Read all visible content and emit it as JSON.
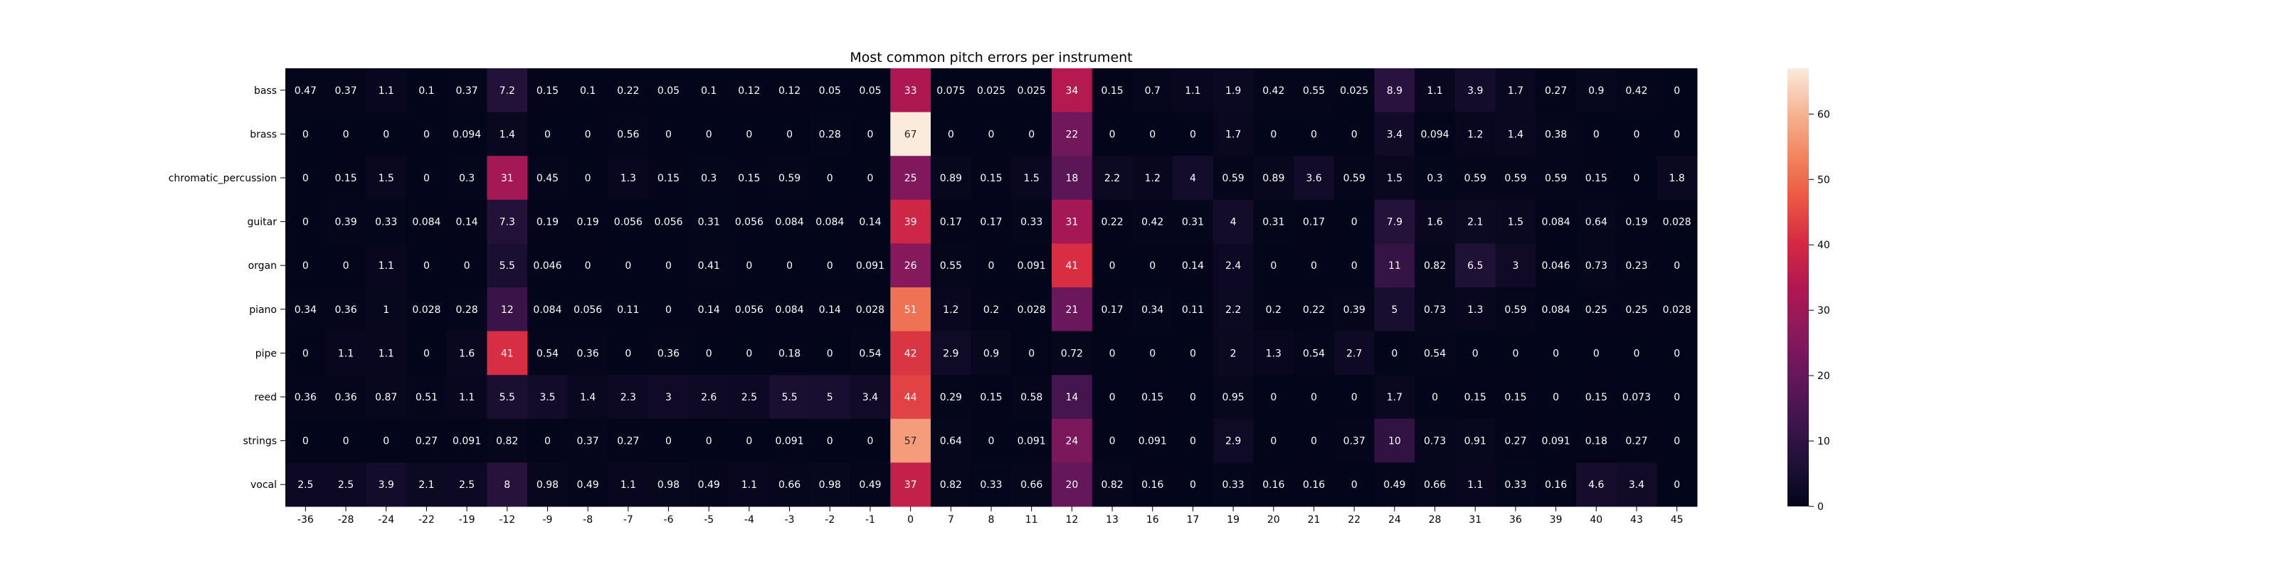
{
  "chart_data": {
    "type": "heatmap",
    "title": "Most common pitch errors per instrument",
    "xlabel": "",
    "ylabel": "",
    "x": [
      "-36",
      "-28",
      "-24",
      "-22",
      "-19",
      "-12",
      "-9",
      "-8",
      "-7",
      "-6",
      "-5",
      "-4",
      "-3",
      "-2",
      "-1",
      "0",
      "7",
      "8",
      "11",
      "12",
      "13",
      "16",
      "17",
      "19",
      "20",
      "21",
      "22",
      "24",
      "28",
      "31",
      "36",
      "39",
      "40",
      "43",
      "45"
    ],
    "y": [
      "bass",
      "brass",
      "chromatic_percussion",
      "guitar",
      "organ",
      "piano",
      "pipe",
      "reed",
      "strings",
      "vocal"
    ],
    "values": [
      [
        "0.47",
        "0.37",
        "1.1",
        "0.1",
        "0.37",
        "7.2",
        "0.15",
        "0.1",
        "0.22",
        "0.05",
        "0.1",
        "0.12",
        "0.12",
        "0.05",
        "0.05",
        "33",
        "0.075",
        "0.025",
        "0.025",
        "34",
        "0.15",
        "0.7",
        "1.1",
        "1.9",
        "0.42",
        "0.55",
        "0.025",
        "8.9",
        "1.1",
        "3.9",
        "1.7",
        "0.27",
        "0.9",
        "0.42",
        "0"
      ],
      [
        "0",
        "0",
        "0",
        "0",
        "0.094",
        "1.4",
        "0",
        "0",
        "0.56",
        "0",
        "0",
        "0",
        "0",
        "0.28",
        "0",
        "67",
        "0",
        "0",
        "0",
        "22",
        "0",
        "0",
        "0",
        "1.7",
        "0",
        "0",
        "0",
        "3.4",
        "0.094",
        "1.2",
        "1.4",
        "0.38",
        "0",
        "0",
        "0"
      ],
      [
        "0",
        "0.15",
        "1.5",
        "0",
        "0.3",
        "31",
        "0.45",
        "0",
        "1.3",
        "0.15",
        "0.3",
        "0.15",
        "0.59",
        "0",
        "0",
        "25",
        "0.89",
        "0.15",
        "1.5",
        "18",
        "2.2",
        "1.2",
        "4",
        "0.59",
        "0.89",
        "3.6",
        "0.59",
        "1.5",
        "0.3",
        "0.59",
        "0.59",
        "0.59",
        "0.15",
        "0",
        "1.8"
      ],
      [
        "0",
        "0.39",
        "0.33",
        "0.084",
        "0.14",
        "7.3",
        "0.19",
        "0.19",
        "0.056",
        "0.056",
        "0.31",
        "0.056",
        "0.084",
        "0.084",
        "0.14",
        "39",
        "0.17",
        "0.17",
        "0.33",
        "31",
        "0.22",
        "0.42",
        "0.31",
        "4",
        "0.31",
        "0.17",
        "0",
        "7.9",
        "1.6",
        "2.1",
        "1.5",
        "0.084",
        "0.64",
        "0.19",
        "0.028"
      ],
      [
        "0",
        "0",
        "1.1",
        "0",
        "0",
        "5.5",
        "0.046",
        "0",
        "0",
        "0",
        "0.41",
        "0",
        "0",
        "0",
        "0.091",
        "26",
        "0.55",
        "0",
        "0.091",
        "41",
        "0",
        "0",
        "0.14",
        "2.4",
        "0",
        "0",
        "0",
        "11",
        "0.82",
        "6.5",
        "3",
        "0.046",
        "0.73",
        "0.23",
        "0"
      ],
      [
        "0.34",
        "0.36",
        "1",
        "0.028",
        "0.28",
        "12",
        "0.084",
        "0.056",
        "0.11",
        "0",
        "0.14",
        "0.056",
        "0.084",
        "0.14",
        "0.028",
        "51",
        "1.2",
        "0.2",
        "0.028",
        "21",
        "0.17",
        "0.34",
        "0.11",
        "2.2",
        "0.2",
        "0.22",
        "0.39",
        "5",
        "0.73",
        "1.3",
        "0.59",
        "0.084",
        "0.25",
        "0.25",
        "0.028"
      ],
      [
        "0",
        "1.1",
        "1.1",
        "0",
        "1.6",
        "41",
        "0.54",
        "0.36",
        "0",
        "0.36",
        "0",
        "0",
        "0.18",
        "0",
        "0.54",
        "42",
        "2.9",
        "0.9",
        "0",
        "0.72",
        "0",
        "0",
        "0",
        "2",
        "1.3",
        "0.54",
        "2.7",
        "0",
        "0.54",
        "0",
        "0",
        "0",
        "0",
        "0",
        "0"
      ],
      [
        "0.36",
        "0.36",
        "0.87",
        "0.51",
        "1.1",
        "5.5",
        "3.5",
        "1.4",
        "2.3",
        "3",
        "2.6",
        "2.5",
        "5.5",
        "5",
        "3.4",
        "44",
        "0.29",
        "0.15",
        "0.58",
        "14",
        "0",
        "0.15",
        "0",
        "0.95",
        "0",
        "0",
        "0",
        "1.7",
        "0",
        "0.15",
        "0.15",
        "0",
        "0.15",
        "0.073",
        "0"
      ],
      [
        "0",
        "0",
        "0",
        "0.27",
        "0.091",
        "0.82",
        "0",
        "0.37",
        "0.27",
        "0",
        "0",
        "0",
        "0.091",
        "0",
        "0",
        "57",
        "0.64",
        "0",
        "0.091",
        "24",
        "0",
        "0.091",
        "0",
        "2.9",
        "0",
        "0",
        "0.37",
        "10",
        "0.73",
        "0.91",
        "0.27",
        "0.091",
        "0.18",
        "0.27",
        "0"
      ],
      [
        "2.5",
        "2.5",
        "3.9",
        "2.1",
        "2.5",
        "8",
        "0.98",
        "0.49",
        "1.1",
        "0.98",
        "0.49",
        "1.1",
        "0.66",
        "0.98",
        "0.49",
        "37",
        "0.82",
        "0.33",
        "0.66",
        "20",
        "0.82",
        "0.16",
        "0",
        "0.33",
        "0.16",
        "0.16",
        "0",
        "0.49",
        "0.66",
        "1.1",
        "0.33",
        "0.16",
        "4.6",
        "3.4",
        "0"
      ]
    ],
    "colorscale": "rocket",
    "vmin": 0,
    "vmax": 67,
    "colorbar_ticks": [
      "0",
      "10",
      "20",
      "30",
      "40",
      "50",
      "60"
    ],
    "legend": "colorbar right"
  }
}
